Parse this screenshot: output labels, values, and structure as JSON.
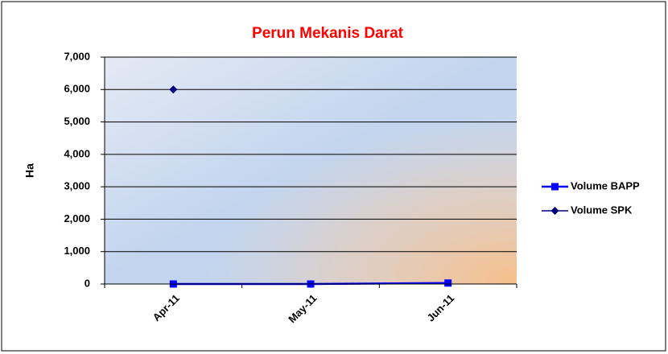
{
  "chart_data": {
    "type": "line",
    "title": "Perun Mekanis Darat",
    "ylabel": "Ha",
    "categories": [
      "Apr-11",
      "May-11",
      "Jun-11"
    ],
    "series": [
      {
        "name": "Volume BAPP",
        "color": "#0000ff",
        "marker": "square",
        "values": [
          0,
          0,
          30
        ]
      },
      {
        "name": "Volume SPK",
        "color": "#000080",
        "marker": "diamond",
        "values": [
          6000,
          null,
          null
        ]
      }
    ],
    "ylim": [
      0,
      7000
    ],
    "yticks": [
      0,
      {
        "value": 1000,
        "label": "1,000"
      },
      {
        "value": 2000,
        "label": "2,000"
      },
      {
        "value": 3000,
        "label": "3,000"
      },
      {
        "value": 4000,
        "label": "4,000"
      },
      {
        "value": 5000,
        "label": "5,000"
      },
      {
        "value": 6000,
        "label": "6,000"
      },
      {
        "value": 7000,
        "label": "7,000"
      }
    ],
    "grid": true,
    "legend": "right"
  }
}
